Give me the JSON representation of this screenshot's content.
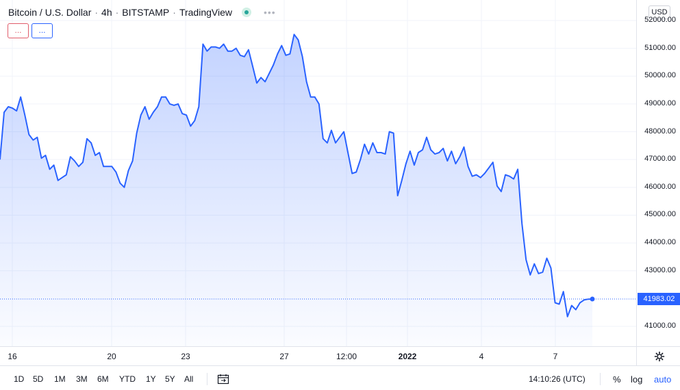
{
  "header": {
    "symbol": "Bitcoin / U.S. Dollar",
    "interval": "4h",
    "exchange": "BITSTAMP",
    "source": "TradingView",
    "more": "•••"
  },
  "indicators": {
    "red_label": "...",
    "blue_label": "..."
  },
  "price_axis": {
    "currency": "USD",
    "ticks": [
      "52000.00",
      "51000.00",
      "50000.00",
      "49000.00",
      "48000.00",
      "47000.00",
      "46000.00",
      "45000.00",
      "44000.00",
      "43000.00",
      "41000.00"
    ],
    "current_price": "41983.02"
  },
  "time_axis": {
    "labels": [
      "16",
      "20",
      "23",
      "27",
      "12:00",
      "2022",
      "4",
      "7"
    ]
  },
  "bottom_bar": {
    "ranges": [
      "1D",
      "5D",
      "1M",
      "3M",
      "6M",
      "YTD",
      "1Y",
      "5Y",
      "All"
    ],
    "clock": "14:10:26 (UTC)",
    "percent": "%",
    "log": "log",
    "auto": "auto"
  },
  "colors": {
    "line": "#2962ff",
    "fill_top": "#2962ff",
    "current_price_label": "#2962ff",
    "status_live": "#26a69a"
  },
  "chart_data": {
    "type": "area",
    "x_labels": [
      "16",
      "20",
      "23",
      "27",
      "12:00",
      "2022",
      "4",
      "7"
    ],
    "ylim": [
      40500,
      52200
    ],
    "values": [
      47000,
      48700,
      48900,
      48850,
      48750,
      49250,
      48600,
      47900,
      47700,
      47800,
      47050,
      47150,
      46650,
      46800,
      46250,
      46350,
      46450,
      47100,
      46950,
      46750,
      46900,
      47750,
      47600,
      47150,
      47250,
      46750,
      46750,
      46750,
      46550,
      46150,
      46000,
      46600,
      46950,
      47950,
      48600,
      48900,
      48450,
      48700,
      48900,
      49250,
      49250,
      49000,
      48950,
      49000,
      48650,
      48600,
      48200,
      48400,
      48900,
      51150,
      50900,
      51050,
      51050,
      51000,
      51150,
      50900,
      50900,
      51000,
      50750,
      50700,
      50950,
      50350,
      49750,
      49950,
      49800,
      50100,
      50400,
      50800,
      51100,
      50750,
      50800,
      51500,
      51300,
      50700,
      49800,
      49250,
      49250,
      49000,
      47750,
      47600,
      48050,
      47600,
      47800,
      48000,
      47250,
      46500,
      46550,
      47000,
      47550,
      47200,
      47600,
      47250,
      47250,
      47200,
      48000,
      47950,
      45700,
      46250,
      46850,
      47300,
      46800,
      47250,
      47350,
      47800,
      47350,
      47200,
      47250,
      47400,
      46950,
      47300,
      46850,
      47100,
      47450,
      46750,
      46400,
      46450,
      46350,
      46500,
      46700,
      46900,
      46050,
      45850,
      46450,
      46400,
      46300,
      46650,
      44700,
      43400,
      42850,
      43250,
      42900,
      42950,
      43450,
      43100,
      41850,
      41800,
      42250,
      41350,
      41750,
      41600,
      41850,
      41950,
      41980,
      41983.02
    ]
  }
}
